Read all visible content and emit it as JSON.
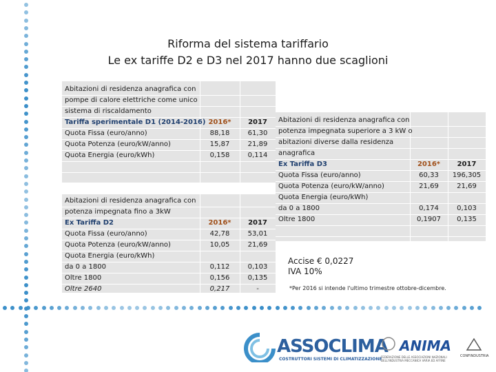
{
  "header": {
    "title": "Riforma del sistema tariffario",
    "subtitle": "Le ex tariffe D2 e D3 nel 2017 hanno due scaglioni"
  },
  "tables": [
    {
      "header_row": 3,
      "rows": [
        [
          "Abitazioni di residenza anagrafica con",
          null,
          null
        ],
        [
          "pompe di calore elettriche come unico",
          null,
          null
        ],
        [
          "sistema di riscaldamento",
          null,
          null
        ],
        [
          "Tariffa sperimentale D1 (2014-2016)",
          "2016*",
          "2017"
        ],
        [
          "Quota Fissa (euro/anno)",
          "88,18",
          "61,30"
        ],
        [
          "Quota Potenza (euro/kW/anno)",
          "15,87",
          "21,89"
        ],
        [
          "Quota Energia (euro/kWh)",
          "0,158",
          "0,114"
        ]
      ]
    },
    {
      "header_row": 2,
      "italic_row": 8,
      "rows": [
        [
          "Abitazioni di residenza anagrafica con",
          null,
          null
        ],
        [
          "potenza impegnata fino a 3kW",
          null,
          null
        ],
        [
          "Ex Tariffa D2",
          "2016*",
          "2017"
        ],
        [
          "Quota Fissa (euro/anno)",
          "42,78",
          "53,01"
        ],
        [
          "Quota Potenza (euro/kW/anno)",
          "10,05",
          "21,69"
        ],
        [
          "Quota Energia (euro/kWh)",
          null,
          null
        ],
        [
          "da 0 a 1800",
          "0,112",
          "0,103"
        ],
        [
          "Oltre 1800",
          "0,156",
          "0,135"
        ],
        [
          "Oltre 2640",
          "0,217",
          "-"
        ]
      ]
    },
    {
      "header_row": 4,
      "rows": [
        [
          "Abitazioni di residenza anagrafica con",
          null,
          null
        ],
        [
          "potenza impegnata superiore a 3 kW o",
          null,
          null
        ],
        [
          "abitazioni diverse dalla residenza",
          null,
          null
        ],
        [
          "anagrafica",
          null,
          null
        ],
        [
          "Ex Tariffa D3",
          "2016*",
          "2017"
        ],
        [
          "Quota Fissa (euro/anno)",
          "60,33",
          "196,305"
        ],
        [
          "Quota Potenza (euro/kW/anno)",
          "21,69",
          "21,69"
        ],
        [
          "Quota Energia (euro/kWh)",
          null,
          null
        ],
        [
          "da 0 a 1800",
          "0,174",
          "0,103"
        ],
        [
          "Oltre 1800",
          "0,1907",
          "0,135"
        ]
      ]
    }
  ],
  "notes": [
    "Accise € 0,0227",
    "IVA 10%"
  ],
  "footnote": "*Per 2016 si intende l'ultimo trimestre ottobre-dicembre.",
  "footer": {
    "assoclima": "ASSOCLIMA",
    "assoclima_tagline": "COSTRUTTORI SISTEMI DI CLIMATIZZAZIONE",
    "anima": "ANIMA",
    "anima_tagline": "FEDERAZIONE DELLE ASSOCIAZIONI NAZIONALI DELL'INDUSTRIA MECCANICA VARIA ED AFFINE",
    "confindustria": "CONFINDUSTRIA"
  }
}
